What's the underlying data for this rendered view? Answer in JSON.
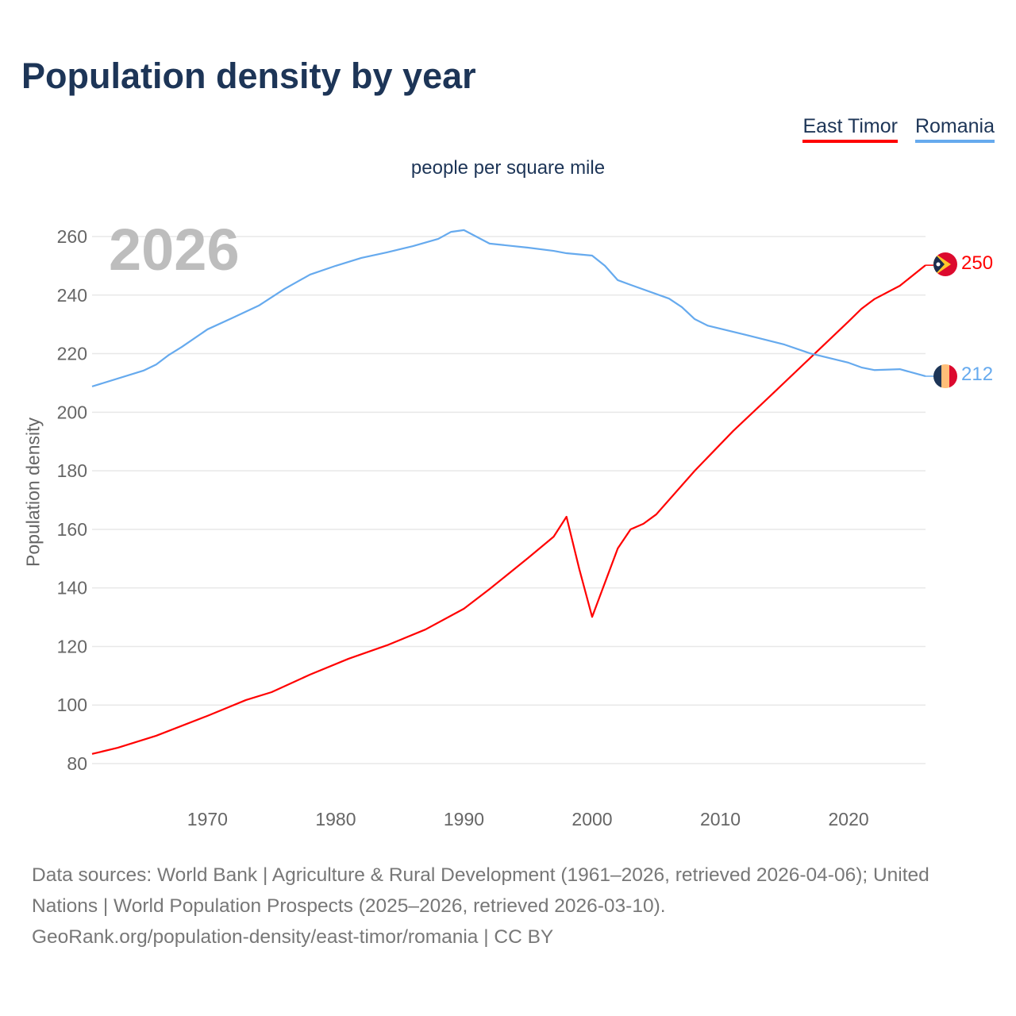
{
  "title": "Population density by year",
  "legend": [
    {
      "label": "East Timor",
      "color": "#ff0000"
    },
    {
      "label": "Romania",
      "color": "#66aaee"
    }
  ],
  "unit_label": "people per square mile",
  "current_year": "2026",
  "footer": {
    "line1": "Data sources: World Bank | Agriculture & Rural Development (1961–2026, retrieved 2026-04-06); United Nations | World Population Prospects (2025–2026, retrieved 2026-03-10).",
    "line2": "GeoRank.org/population-density/east-timor/romania | CC BY"
  },
  "end_labels": {
    "east_timor": "250",
    "romania": "212"
  },
  "flags": [
    "east-timor-flag-icon",
    "romania-flag-icon"
  ],
  "chart_data": {
    "type": "line",
    "title": "Population density by year",
    "xlabel": "",
    "ylabel": "Population density",
    "xlim": [
      1961,
      2026
    ],
    "ylim": [
      80,
      260
    ],
    "xticks": [
      1970,
      1980,
      1990,
      2000,
      2010,
      2020
    ],
    "yticks": [
      80,
      100,
      120,
      140,
      160,
      180,
      200,
      220,
      240,
      260
    ],
    "grid": true,
    "legend_position": "top-right",
    "series": [
      {
        "name": "East Timor",
        "color": "#ff0000",
        "x": [
          1961,
          1963,
          1966,
          1970,
          1973,
          1975,
          1978,
          1981,
          1984,
          1987,
          1990,
          1992,
          1995,
          1997,
          1998,
          1999,
          2000,
          2002,
          2003,
          2004,
          2005,
          2008,
          2011,
          2014,
          2017,
          2020,
          2021,
          2022,
          2024,
          2026
        ],
        "y": [
          83.3,
          85.4,
          89.5,
          96.3,
          101.7,
          104.4,
          110.4,
          115.8,
          120.4,
          125.8,
          132.9,
          139.6,
          150.2,
          157.5,
          164.3,
          146.4,
          130.1,
          153.5,
          160,
          161.9,
          165.1,
          180,
          193.6,
          206,
          218.5,
          231,
          235.3,
          238.6,
          243.2,
          250.2
        ]
      },
      {
        "name": "Romania",
        "color": "#66aaee",
        "x": [
          1961,
          1965,
          1966,
          1967,
          1968,
          1970,
          1972,
          1974,
          1976,
          1978,
          1980,
          1982,
          1984,
          1986,
          1988,
          1989,
          1990,
          1992,
          1995,
          1997,
          1998,
          2000,
          2001,
          2002,
          2003,
          2006,
          2007,
          2008,
          2009,
          2012,
          2015,
          2017,
          2020,
          2021,
          2022,
          2024,
          2026
        ],
        "y": [
          208.8,
          214.2,
          216.3,
          219.6,
          222.3,
          228.3,
          232.3,
          236.4,
          242.1,
          247,
          250,
          252.7,
          254.6,
          256.7,
          259.2,
          261.6,
          262.2,
          257.6,
          256.2,
          255.1,
          254.3,
          253.5,
          250,
          245.1,
          243.5,
          238.8,
          235.9,
          231.8,
          229.6,
          226.4,
          223.1,
          220.1,
          216.9,
          215.3,
          214.4,
          214.7,
          212.3
        ]
      }
    ]
  }
}
